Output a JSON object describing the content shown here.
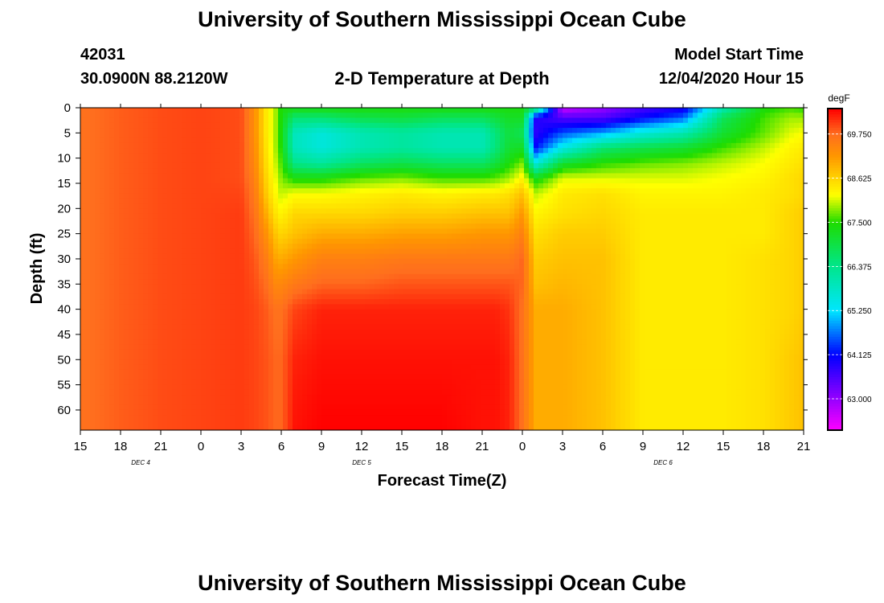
{
  "page": {
    "title_top": "University of Southern Mississippi Ocean Cube",
    "title_bottom": "University of Southern Mississippi Ocean Cube",
    "station_id": "42031",
    "station_coords": "30.0900N 88.2120W",
    "plot_title": "2-D Temperature at Depth",
    "model_start_label": "Model Start Time",
    "model_start_value": "12/04/2020 Hour 15"
  },
  "chart_data": {
    "type": "heatmap",
    "title": "2-D Temperature at Depth",
    "xlabel": "Forecast Time(Z)",
    "ylabel": "Depth (ft)",
    "colorbar_unit": "degF",
    "x_hours": [
      0,
      3,
      6,
      9,
      12,
      15,
      18,
      21,
      24,
      27,
      30,
      33,
      36,
      39,
      42,
      45,
      48,
      51,
      54
    ],
    "x_tick_labels": [
      "15",
      "18",
      "21",
      "0",
      "3",
      "6",
      "9",
      "12",
      "15",
      "18",
      "21",
      "0",
      "3",
      "6",
      "9",
      "12",
      "15",
      "18",
      "21"
    ],
    "xlim": [
      0,
      54
    ],
    "date_labels": [
      {
        "text": "DEC 4",
        "hour": 4.5
      },
      {
        "text": "DEC 5",
        "hour": 21
      },
      {
        "text": "DEC 6",
        "hour": 43.5
      }
    ],
    "y_ticks": [
      0,
      5,
      10,
      15,
      20,
      25,
      30,
      35,
      40,
      45,
      50,
      55,
      60
    ],
    "ylim": [
      0,
      64
    ],
    "colorbar_ticks": [
      "69.750",
      "68.625",
      "67.500",
      "66.375",
      "65.250",
      "64.125",
      "63.000"
    ],
    "colorbar_tick_values": [
      69.75,
      68.625,
      67.5,
      66.375,
      65.25,
      64.125,
      63.0
    ],
    "color_range": [
      62.2,
      70.4
    ],
    "color_stops": [
      {
        "value": 62.2,
        "color": "#ff00ff"
      },
      {
        "value": 63.0,
        "color": "#9600ff"
      },
      {
        "value": 64.125,
        "color": "#0000ff"
      },
      {
        "value": 65.25,
        "color": "#00e6ff"
      },
      {
        "value": 66.375,
        "color": "#00e68c"
      },
      {
        "value": 67.5,
        "color": "#1edc00"
      },
      {
        "value": 68.2,
        "color": "#ffff00"
      },
      {
        "value": 68.625,
        "color": "#ffd400"
      },
      {
        "value": 69.2,
        "color": "#ff9600"
      },
      {
        "value": 69.75,
        "color": "#ff6e1e"
      },
      {
        "value": 70.4,
        "color": "#ff0000"
      }
    ],
    "grid_hours": [
      0,
      3,
      6,
      9,
      12,
      13,
      14,
      14.5,
      15,
      16,
      18,
      21,
      24,
      27,
      30,
      31,
      32,
      33,
      34,
      36,
      39,
      42,
      45,
      48,
      51,
      53,
      54
    ],
    "grid_depths": [
      0,
      2,
      5,
      8,
      11,
      14,
      17,
      21,
      25,
      30,
      35,
      40,
      50,
      64
    ],
    "temperature_degF": [
      [
        69.7,
        69.7,
        69.7,
        69.7,
        69.7,
        69.7,
        69.7,
        69.7,
        69.7,
        69.7,
        69.7,
        69.7,
        69.7,
        69.7
      ],
      [
        69.85,
        69.85,
        69.85,
        69.85,
        69.85,
        69.85,
        69.85,
        69.85,
        69.85,
        69.85,
        69.85,
        69.85,
        69.85,
        69.85
      ],
      [
        69.95,
        69.95,
        69.95,
        69.95,
        69.95,
        69.95,
        69.95,
        69.95,
        69.95,
        69.95,
        69.95,
        69.95,
        69.95,
        69.95
      ],
      [
        70.0,
        70.0,
        70.0,
        70.0,
        70.0,
        70.0,
        70.0,
        70.0,
        70.0,
        70.0,
        70.0,
        70.0,
        70.0,
        70.0
      ],
      [
        69.95,
        69.95,
        69.95,
        69.95,
        69.95,
        69.95,
        70.0,
        70.05,
        70.05,
        70.05,
        70.05,
        70.05,
        70.05,
        70.05
      ],
      [
        69.3,
        69.3,
        69.3,
        69.35,
        69.4,
        69.5,
        69.6,
        69.7,
        69.8,
        69.9,
        69.95,
        70.0,
        70.0,
        70.0
      ],
      [
        68.3,
        68.3,
        68.3,
        68.35,
        68.4,
        68.5,
        68.6,
        68.9,
        69.2,
        69.5,
        69.7,
        69.85,
        69.9,
        69.9
      ],
      [
        68.0,
        68.0,
        68.0,
        68.0,
        68.1,
        68.2,
        68.3,
        68.5,
        68.8,
        69.1,
        69.4,
        69.7,
        69.8,
        69.8
      ],
      [
        67.4,
        67.4,
        67.4,
        67.45,
        67.6,
        67.8,
        68.0,
        68.3,
        68.6,
        69.0,
        69.4,
        69.7,
        69.8,
        69.8
      ],
      [
        67.4,
        66.6,
        65.9,
        65.9,
        66.4,
        67.4,
        68.2,
        68.6,
        68.8,
        69.2,
        69.6,
        70.0,
        70.2,
        70.3
      ],
      [
        67.4,
        66.6,
        65.6,
        65.6,
        66.2,
        67.4,
        68.2,
        68.6,
        69.0,
        69.5,
        69.8,
        70.2,
        70.3,
        70.4
      ],
      [
        67.4,
        66.9,
        66.0,
        66.0,
        66.7,
        67.7,
        68.3,
        68.6,
        69.0,
        69.5,
        69.8,
        70.2,
        70.3,
        70.4
      ],
      [
        67.4,
        67.0,
        66.2,
        66.2,
        66.9,
        67.8,
        68.4,
        68.7,
        69.1,
        69.6,
        69.9,
        70.2,
        70.3,
        70.4
      ],
      [
        67.4,
        66.8,
        66.0,
        66.0,
        66.7,
        67.6,
        68.3,
        68.7,
        69.1,
        69.6,
        69.9,
        70.2,
        70.3,
        70.4
      ],
      [
        67.4,
        66.8,
        66.0,
        66.0,
        66.7,
        67.6,
        68.4,
        68.8,
        69.2,
        69.6,
        69.9,
        70.2,
        70.3,
        70.3
      ],
      [
        67.4,
        67.0,
        66.5,
        66.5,
        67.0,
        67.7,
        68.4,
        68.8,
        69.2,
        69.6,
        69.9,
        70.2,
        70.3,
        70.3
      ],
      [
        67.4,
        67.2,
        67.0,
        67.1,
        67.4,
        67.9,
        68.5,
        68.8,
        69.2,
        69.6,
        69.9,
        70.1,
        70.2,
        70.2
      ],
      [
        67.4,
        67.2,
        66.8,
        67.2,
        67.8,
        68.3,
        68.8,
        69.2,
        69.5,
        69.8,
        69.8,
        69.7,
        69.7,
        69.7
      ],
      [
        66.8,
        63.9,
        63.8,
        64.2,
        65.6,
        67.3,
        68.0,
        68.3,
        68.5,
        68.7,
        68.8,
        69.0,
        69.0,
        69.0
      ],
      [
        62.6,
        63.5,
        64.5,
        65.5,
        67.1,
        68.1,
        68.4,
        68.5,
        68.7,
        68.8,
        68.9,
        69.0,
        69.0,
        69.0
      ],
      [
        63.0,
        63.5,
        64.9,
        66.6,
        67.5,
        68.1,
        68.5,
        68.6,
        68.7,
        68.8,
        68.8,
        68.8,
        68.8,
        68.8
      ],
      [
        63.6,
        64.1,
        65.6,
        66.9,
        67.7,
        68.1,
        68.3,
        68.4,
        68.4,
        68.4,
        68.4,
        68.4,
        68.4,
        68.4
      ],
      [
        63.9,
        64.6,
        66.0,
        67.1,
        67.8,
        68.1,
        68.3,
        68.4,
        68.4,
        68.4,
        68.4,
        68.4,
        68.4,
        68.4
      ],
      [
        66.0,
        66.8,
        67.1,
        67.6,
        68.0,
        68.2,
        68.3,
        68.4,
        68.4,
        68.4,
        68.4,
        68.4,
        68.4,
        68.4
      ],
      [
        67.4,
        67.6,
        67.7,
        68.0,
        68.2,
        68.3,
        68.4,
        68.4,
        68.4,
        68.5,
        68.5,
        68.5,
        68.5,
        68.5
      ],
      [
        67.6,
        67.9,
        68.1,
        68.3,
        68.4,
        68.5,
        68.5,
        68.6,
        68.6,
        68.6,
        68.6,
        68.6,
        68.7,
        68.7
      ],
      [
        67.5,
        67.9,
        68.2,
        68.4,
        68.5,
        68.6,
        68.6,
        68.7,
        68.7,
        68.7,
        68.7,
        68.7,
        68.8,
        68.8
      ]
    ]
  }
}
